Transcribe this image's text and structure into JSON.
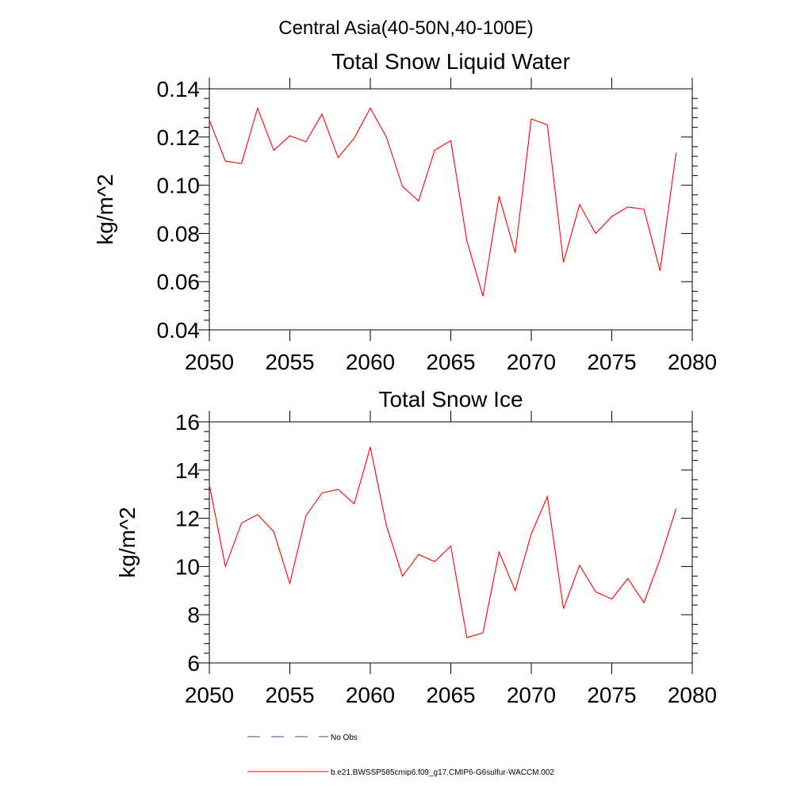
{
  "figure": {
    "main_title": "Central Asia(40-50N,40-100E)"
  },
  "chart_data": [
    {
      "type": "line",
      "title": "Total Snow Liquid Water",
      "xlabel": "",
      "ylabel": "kg/m^2",
      "xlim": [
        2050,
        2080
      ],
      "ylim": [
        0.04,
        0.14
      ],
      "x_ticks": [
        2050,
        2055,
        2060,
        2065,
        2070,
        2075,
        2080
      ],
      "x_tick_labels": [
        "2050",
        "2055",
        "2060",
        "2065",
        "2070",
        "2075",
        "2080"
      ],
      "y_ticks": [
        0.04,
        0.06,
        0.08,
        0.1,
        0.12,
        0.14
      ],
      "y_tick_labels": [
        "0.04",
        "0.06",
        "0.08",
        "0.10",
        "0.12",
        "0.14"
      ],
      "grid": false,
      "series": [
        {
          "name": "b.e21.BWSSP585cmip6.f09_g17.CMIP6-G6sulfur-WACCM.002",
          "color": "#ff0000",
          "x": [
            2050,
            2051,
            2052,
            2053,
            2054,
            2055,
            2056,
            2057,
            2058,
            2059,
            2060,
            2061,
            2062,
            2063,
            2064,
            2065,
            2066,
            2067,
            2068,
            2069,
            2070,
            2071,
            2072,
            2073,
            2074,
            2075,
            2076,
            2077,
            2078,
            2079
          ],
          "y": [
            0.127,
            0.11,
            0.109,
            0.132,
            0.1145,
            0.1205,
            0.118,
            0.1295,
            0.1115,
            0.1195,
            0.132,
            0.12,
            0.0995,
            0.0935,
            0.1145,
            0.1185,
            0.077,
            0.054,
            0.0955,
            0.072,
            0.1275,
            0.125,
            0.068,
            0.092,
            0.08,
            0.087,
            0.091,
            0.09,
            0.0645,
            0.1135
          ]
        }
      ]
    },
    {
      "type": "line",
      "title": "Total Snow Ice",
      "xlabel": "",
      "ylabel": "kg/m^2",
      "xlim": [
        2050,
        2080
      ],
      "ylim": [
        6,
        16
      ],
      "x_ticks": [
        2050,
        2055,
        2060,
        2065,
        2070,
        2075,
        2080
      ],
      "x_tick_labels": [
        "2050",
        "2055",
        "2060",
        "2065",
        "2070",
        "2075",
        "2080"
      ],
      "y_ticks": [
        6,
        8,
        10,
        12,
        14,
        16
      ],
      "y_tick_labels": [
        "6",
        "8",
        "10",
        "12",
        "14",
        "16"
      ],
      "grid": false,
      "series": [
        {
          "name": "b.e21.BWSSP585cmip6.f09_g17.CMIP6-G6sulfur-WACCM.002",
          "color": "#ff0000",
          "x": [
            2050,
            2051,
            2052,
            2053,
            2054,
            2055,
            2056,
            2057,
            2058,
            2059,
            2060,
            2061,
            2062,
            2063,
            2064,
            2065,
            2066,
            2067,
            2068,
            2069,
            2070,
            2071,
            2072,
            2073,
            2074,
            2075,
            2076,
            2077,
            2078,
            2079
          ],
          "y": [
            13.4,
            10.0,
            11.8,
            12.15,
            11.45,
            9.3,
            12.1,
            13.05,
            13.2,
            12.6,
            14.95,
            11.7,
            9.6,
            10.5,
            10.2,
            10.85,
            7.05,
            7.25,
            10.6,
            9.0,
            11.35,
            12.9,
            8.25,
            10.05,
            8.95,
            8.65,
            9.5,
            8.5,
            10.3,
            12.4
          ]
        }
      ]
    }
  ],
  "legend": {
    "placement": "bottom",
    "items": [
      {
        "label": "No Obs",
        "color": "#4a4a8a",
        "dash": true
      },
      {
        "label": "b.e21.BWSSP585cmip6.f09_g17.CMIP6-G6sulfur-WACCM.002",
        "color": "#ff0000",
        "dash": false
      }
    ]
  }
}
